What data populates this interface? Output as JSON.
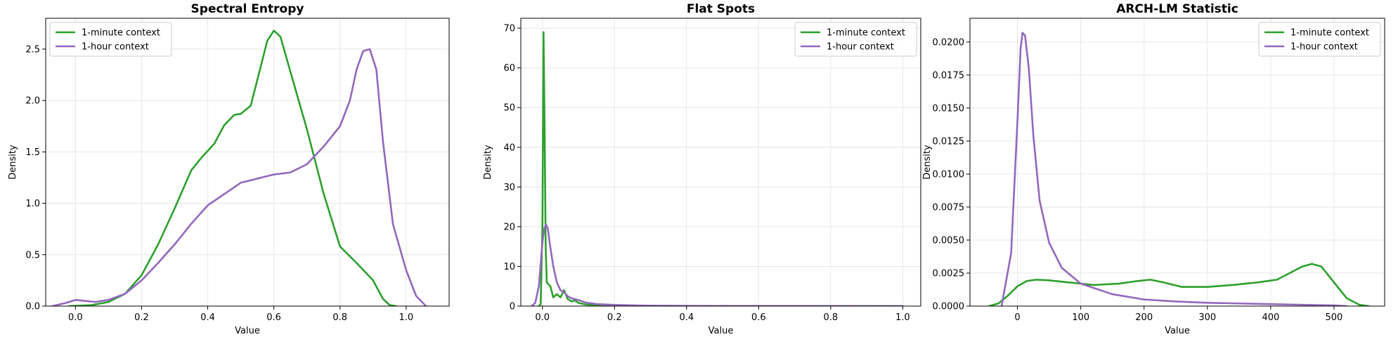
{
  "colors": {
    "green": "#2ca02c",
    "purple": "#9467bd",
    "grid": "#e6e6e6"
  },
  "chart_data": [
    {
      "type": "line",
      "title": "Spectral Entropy",
      "xlabel": "Value",
      "ylabel": "Density",
      "xlim": [
        -0.09,
        1.13
      ],
      "ylim": [
        0,
        2.8
      ],
      "xticks": [
        0.0,
        0.2,
        0.4,
        0.6,
        0.8,
        1.0
      ],
      "xticklabels": [
        "0.0",
        "0.2",
        "0.4",
        "0.6",
        "0.8",
        "1.0"
      ],
      "yticks": [
        0.0,
        0.5,
        1.0,
        1.5,
        2.0,
        2.5
      ],
      "yticklabels": [
        "0.0",
        "0.5",
        "1.0",
        "1.5",
        "2.0",
        "2.5"
      ],
      "grid": true,
      "legend_position": "top-left",
      "series": [
        {
          "name": "1-minute context",
          "color": "#2ca02c",
          "x": [
            -0.02,
            0.05,
            0.1,
            0.15,
            0.2,
            0.25,
            0.3,
            0.35,
            0.38,
            0.42,
            0.45,
            0.48,
            0.5,
            0.53,
            0.55,
            0.58,
            0.6,
            0.62,
            0.65,
            0.7,
            0.75,
            0.8,
            0.85,
            0.9,
            0.93,
            0.95,
            0.97
          ],
          "y": [
            0.0,
            0.01,
            0.04,
            0.12,
            0.3,
            0.6,
            0.95,
            1.32,
            1.44,
            1.58,
            1.76,
            1.86,
            1.87,
            1.95,
            2.2,
            2.58,
            2.68,
            2.62,
            2.28,
            1.72,
            1.1,
            0.58,
            0.42,
            0.25,
            0.07,
            0.01,
            0.0
          ]
        },
        {
          "name": "1-hour context",
          "color": "#9467bd",
          "x": [
            -0.07,
            -0.03,
            0.0,
            0.03,
            0.06,
            0.1,
            0.15,
            0.2,
            0.25,
            0.3,
            0.35,
            0.4,
            0.45,
            0.5,
            0.55,
            0.6,
            0.65,
            0.7,
            0.75,
            0.8,
            0.83,
            0.85,
            0.87,
            0.89,
            0.91,
            0.93,
            0.96,
            1.0,
            1.03,
            1.06
          ],
          "y": [
            0.0,
            0.03,
            0.06,
            0.05,
            0.04,
            0.06,
            0.12,
            0.25,
            0.42,
            0.6,
            0.8,
            0.98,
            1.09,
            1.2,
            1.24,
            1.28,
            1.3,
            1.38,
            1.55,
            1.75,
            2.0,
            2.3,
            2.48,
            2.5,
            2.3,
            1.6,
            0.8,
            0.35,
            0.1,
            0.0
          ]
        }
      ]
    },
    {
      "type": "line",
      "title": "Flat Spots",
      "xlabel": "Value",
      "ylabel": "Density",
      "xlim": [
        -0.06,
        1.05
      ],
      "ylim": [
        0,
        72.5
      ],
      "xticks": [
        0.0,
        0.2,
        0.4,
        0.6,
        0.8,
        1.0
      ],
      "xticklabels": [
        "0.0",
        "0.2",
        "0.4",
        "0.6",
        "0.8",
        "1.0"
      ],
      "yticks": [
        0,
        10,
        20,
        30,
        40,
        50,
        60,
        70
      ],
      "yticklabels": [
        "0",
        "10",
        "20",
        "30",
        "40",
        "50",
        "60",
        "70"
      ],
      "grid": true,
      "legend_position": "top-right",
      "series": [
        {
          "name": "1-minute context",
          "color": "#2ca02c",
          "x": [
            -0.01,
            -0.005,
            0.0,
            0.003,
            0.006,
            0.009,
            0.012,
            0.016,
            0.022,
            0.03,
            0.04,
            0.05,
            0.06,
            0.07,
            0.08,
            0.09,
            0.1,
            0.12,
            0.15,
            0.2,
            0.3,
            0.5,
            0.7,
            1.0
          ],
          "y": [
            0.0,
            0.5,
            20.0,
            69.0,
            45.0,
            15.0,
            6.0,
            5.5,
            5.0,
            2.2,
            3.0,
            2.2,
            4.0,
            1.8,
            1.2,
            1.4,
            0.8,
            0.4,
            0.2,
            0.1,
            0.05,
            0.02,
            0.01,
            0.0
          ]
        },
        {
          "name": "1-hour context",
          "color": "#9467bd",
          "x": [
            -0.03,
            -0.02,
            -0.01,
            0.0,
            0.005,
            0.01,
            0.015,
            0.02,
            0.03,
            0.04,
            0.05,
            0.06,
            0.07,
            0.08,
            0.1,
            0.12,
            0.15,
            0.2,
            0.25,
            0.3,
            0.4,
            0.6,
            0.8,
            1.0
          ],
          "y": [
            0.0,
            0.8,
            5.0,
            16.0,
            19.5,
            20.5,
            19.5,
            16.0,
            10.0,
            6.0,
            4.0,
            3.5,
            2.5,
            2.0,
            1.5,
            0.9,
            0.5,
            0.3,
            0.2,
            0.1,
            0.05,
            0.02,
            0.01,
            0.0
          ]
        }
      ]
    },
    {
      "type": "line",
      "title": "ARCH-LM Statistic",
      "xlabel": "Value",
      "ylabel": "Density",
      "xlim": [
        -75,
        580
      ],
      "ylim": [
        0,
        0.0218
      ],
      "xticks": [
        0,
        100,
        200,
        300,
        400,
        500
      ],
      "xticklabels": [
        "0",
        "100",
        "200",
        "300",
        "400",
        "500"
      ],
      "yticks": [
        0.0,
        0.0025,
        0.005,
        0.0075,
        0.01,
        0.0125,
        0.015,
        0.0175,
        0.02
      ],
      "yticklabels": [
        "0.0000",
        "0.0025",
        "0.0050",
        "0.0075",
        "0.0100",
        "0.0125",
        "0.0150",
        "0.0175",
        "0.0200"
      ],
      "grid": true,
      "legend_position": "top-right",
      "series": [
        {
          "name": "1-minute context",
          "color": "#2ca02c",
          "x": [
            -45,
            -30,
            -15,
            0,
            15,
            30,
            50,
            80,
            120,
            160,
            190,
            210,
            230,
            260,
            300,
            340,
            380,
            410,
            430,
            450,
            465,
            480,
            500,
            520,
            540,
            555
          ],
          "y": [
            0.0,
            0.0002,
            0.0008,
            0.0015,
            0.0019,
            0.002,
            0.00195,
            0.0018,
            0.0016,
            0.0017,
            0.0019,
            0.002,
            0.0018,
            0.00145,
            0.00145,
            0.0016,
            0.0018,
            0.002,
            0.0025,
            0.003,
            0.0032,
            0.003,
            0.0018,
            0.0006,
            0.0001,
            0.0
          ]
        },
        {
          "name": "1-hour context",
          "color": "#9467bd",
          "x": [
            -25,
            -10,
            0,
            5,
            8,
            12,
            18,
            25,
            35,
            50,
            70,
            100,
            150,
            200,
            250,
            300,
            350,
            400,
            450,
            500,
            520
          ],
          "y": [
            0.0,
            0.004,
            0.014,
            0.0195,
            0.0207,
            0.0205,
            0.018,
            0.013,
            0.008,
            0.0048,
            0.0029,
            0.0017,
            0.0009,
            0.0005,
            0.00035,
            0.00025,
            0.0002,
            0.00015,
            0.0001,
            5e-05,
            0.0
          ]
        }
      ]
    }
  ]
}
